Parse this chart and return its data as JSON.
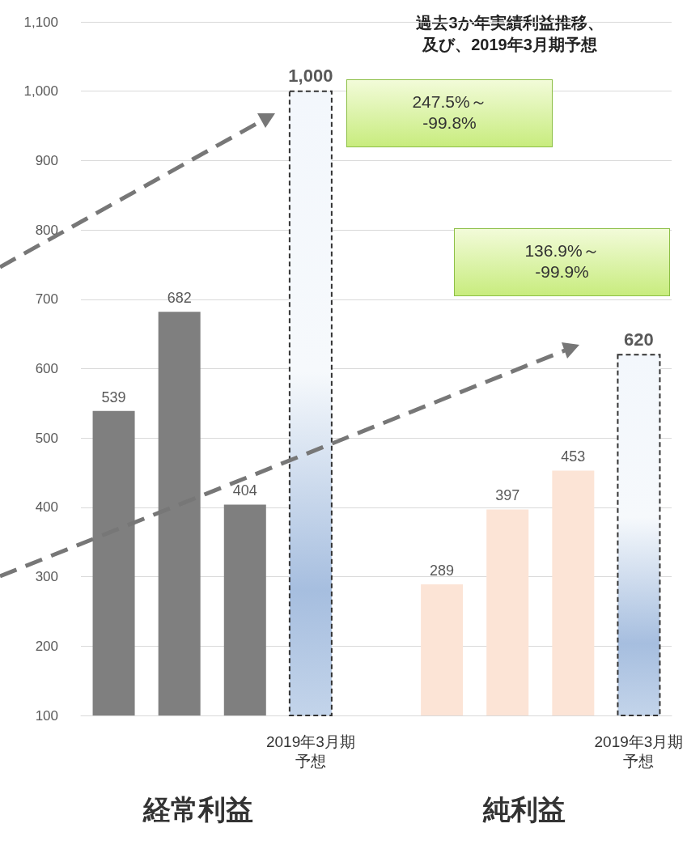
{
  "chart_data": {
    "type": "bar",
    "title": "過去3か年実績利益推移、及び、2019年3月期予想",
    "categories": [
      null,
      null,
      null,
      "2019年3月期予想",
      null,
      null,
      null,
      null,
      "2019年3月期予想"
    ],
    "series": [
      {
        "values": [
          539,
          682,
          404,
          null,
          null,
          289,
          397,
          453,
          null
        ],
        "colors": [
          "#7f7f7f",
          "#7f7f7f",
          "#7f7f7f",
          "#7f7f7f",
          "#7f7f7f",
          "#fce4d6",
          "#fce4d6",
          "#fce4d6",
          "#fce4d6"
        ],
        "value_labels": [
          "539",
          "682",
          "404",
          null,
          null,
          "289",
          "397",
          "453",
          null
        ]
      },
      {
        "type": "bar",
        "color": "#a6bedf",
        "line_style": "dashed",
        "values": [
          null,
          null,
          null,
          1000,
          null,
          null,
          null,
          null,
          620
        ],
        "value_labels": [
          null,
          null,
          null,
          "1,000",
          null,
          null,
          null,
          null,
          "620"
        ]
      }
    ],
    "ylim": [
      100,
      1100
    ],
    "yticks": [
      100,
      200,
      300,
      400,
      500,
      600,
      700,
      800,
      900,
      {
        "value": 1000,
        "label": "1,000"
      },
      {
        "value": 1100,
        "label": "1,100"
      }
    ],
    "grid": "y",
    "annotations": [
      "247.5%～\n-99.8%",
      "136.9%～\n-99.9%",
      "経常利益",
      "純利益"
    ]
  }
}
